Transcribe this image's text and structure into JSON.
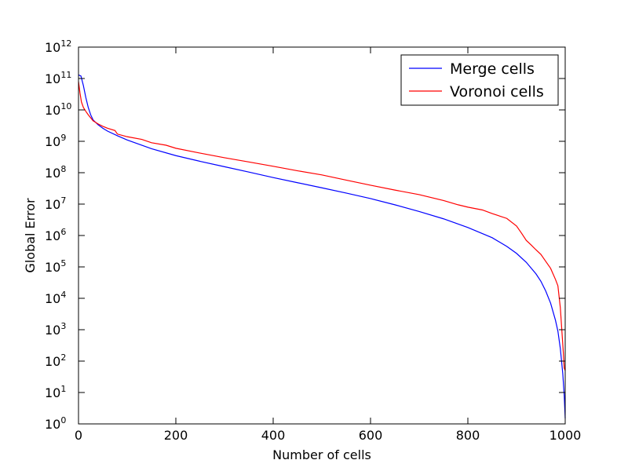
{
  "chart_data": {
    "type": "line",
    "xlabel": "Number of cells",
    "ylabel": "Global Error",
    "xlim": [
      0,
      1000
    ],
    "ylim": [
      1,
      1000000000000.0
    ],
    "yscale": "log",
    "x_ticks": [
      0,
      200,
      400,
      600,
      800,
      1000
    ],
    "y_ticks": [
      {
        "exp": 0,
        "base": "10",
        "sup": "0"
      },
      {
        "exp": 1,
        "base": "10",
        "sup": "1"
      },
      {
        "exp": 2,
        "base": "10",
        "sup": "2"
      },
      {
        "exp": 3,
        "base": "10",
        "sup": "3"
      },
      {
        "exp": 4,
        "base": "10",
        "sup": "4"
      },
      {
        "exp": 5,
        "base": "10",
        "sup": "5"
      },
      {
        "exp": 6,
        "base": "10",
        "sup": "6"
      },
      {
        "exp": 7,
        "base": "10",
        "sup": "7"
      },
      {
        "exp": 8,
        "base": "10",
        "sup": "8"
      },
      {
        "exp": 9,
        "base": "10",
        "sup": "9"
      },
      {
        "exp": 10,
        "base": "10",
        "sup": "10"
      },
      {
        "exp": 11,
        "base": "10",
        "sup": "11"
      },
      {
        "exp": 12,
        "base": "10",
        "sup": "12"
      }
    ],
    "grid": false,
    "legend_position": "upper right",
    "series": [
      {
        "name": "Merge cells",
        "color": "#0000ff",
        "points": [
          [
            0,
            130000000000.0
          ],
          [
            5,
            120000000000.0
          ],
          [
            10,
            60000000000.0
          ],
          [
            15,
            25000000000.0
          ],
          [
            20,
            12000000000.0
          ],
          [
            25,
            7000000000.0
          ],
          [
            30,
            4800000000.0
          ],
          [
            40,
            3400000000.0
          ],
          [
            50,
            2600000000.0
          ],
          [
            60,
            2100000000.0
          ],
          [
            80,
            1500000000.0
          ],
          [
            100,
            1100000000.0
          ],
          [
            150,
            580000000.0
          ],
          [
            200,
            350000000.0
          ],
          [
            250,
            230000000.0
          ],
          [
            300,
            155000000.0
          ],
          [
            350,
            105000000.0
          ],
          [
            400,
            70000000.0
          ],
          [
            450,
            48000000.0
          ],
          [
            500,
            33000000.0
          ],
          [
            550,
            22500000.0
          ],
          [
            600,
            15000000.0
          ],
          [
            650,
            9500000.0
          ],
          [
            700,
            5800000.0
          ],
          [
            750,
            3400000.0
          ],
          [
            800,
            1800000.0
          ],
          [
            850,
            850000.0
          ],
          [
            880,
            450000.0
          ],
          [
            900,
            270000.0
          ],
          [
            920,
            140000.0
          ],
          [
            940,
            60000.0
          ],
          [
            950,
            35000.0
          ],
          [
            960,
            17000.0
          ],
          [
            970,
            7000.0
          ],
          [
            980,
            2000.0
          ],
          [
            985,
            900.0
          ],
          [
            990,
            250.0
          ],
          [
            995,
            40
          ],
          [
            998,
            8
          ],
          [
            1000,
            1.5
          ]
        ]
      },
      {
        "name": "Voronoi cells",
        "color": "#ff0000",
        "points": [
          [
            0,
            80000000000.0
          ],
          [
            3,
            35000000000.0
          ],
          [
            6,
            18000000000.0
          ],
          [
            10,
            12000000000.0
          ],
          [
            15,
            9000000000.0
          ],
          [
            20,
            7000000000.0
          ],
          [
            30,
            4500000000.0
          ],
          [
            40,
            3600000000.0
          ],
          [
            50,
            3000000000.0
          ],
          [
            60,
            2600000000.0
          ],
          [
            75,
            2200000000.0
          ],
          [
            80,
            1700000000.0
          ],
          [
            100,
            1400000000.0
          ],
          [
            130,
            1150000000.0
          ],
          [
            150,
            900000000.0
          ],
          [
            180,
            750000000.0
          ],
          [
            200,
            600000000.0
          ],
          [
            250,
            420000000.0
          ],
          [
            300,
            300000000.0
          ],
          [
            350,
            220000000.0
          ],
          [
            400,
            160000000.0
          ],
          [
            450,
            115000000.0
          ],
          [
            500,
            85000000.0
          ],
          [
            550,
            58000000.0
          ],
          [
            600,
            40000000.0
          ],
          [
            650,
            28000000.0
          ],
          [
            700,
            20000000.0
          ],
          [
            750,
            13000000.0
          ],
          [
            780,
            9500000.0
          ],
          [
            800,
            8000000.0
          ],
          [
            830,
            6500000.0
          ],
          [
            850,
            5000000.0
          ],
          [
            880,
            3500000.0
          ],
          [
            900,
            2000000.0
          ],
          [
            910,
            1200000.0
          ],
          [
            920,
            700000.0
          ],
          [
            930,
            500000.0
          ],
          [
            940,
            350000.0
          ],
          [
            950,
            250000.0
          ],
          [
            960,
            150000.0
          ],
          [
            970,
            90000.0
          ],
          [
            980,
            40000.0
          ],
          [
            985,
            25000.0
          ],
          [
            990,
            5000.0
          ],
          [
            993,
            1000.0
          ],
          [
            996,
            200.0
          ],
          [
            998,
            60
          ],
          [
            1000,
            50
          ]
        ]
      }
    ]
  }
}
